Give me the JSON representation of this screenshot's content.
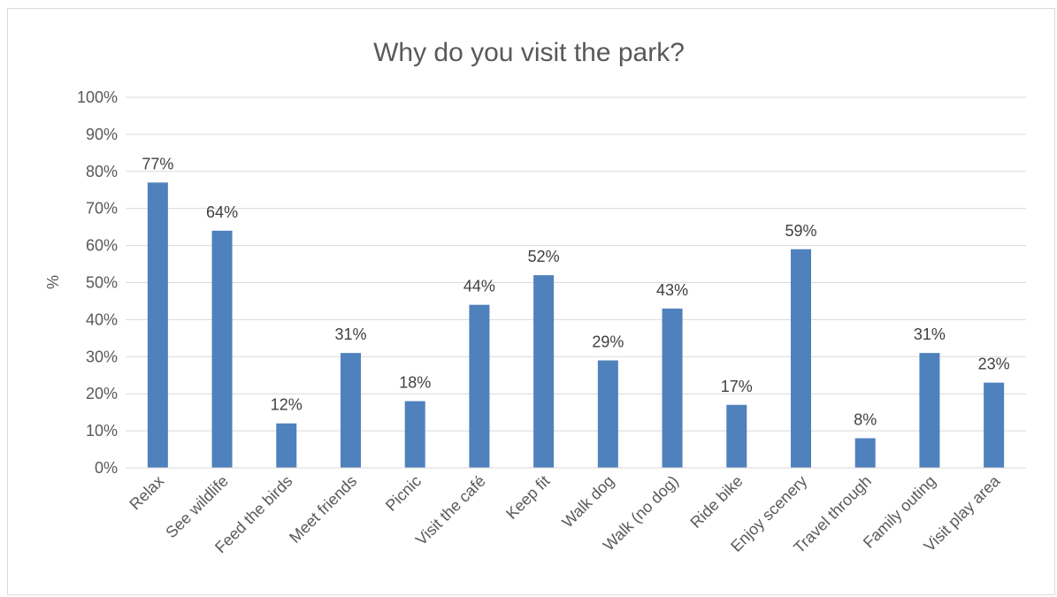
{
  "chart_data": {
    "type": "bar",
    "title": "Why do you visit the park?",
    "xlabel": "",
    "ylabel": "%",
    "ylim": [
      0,
      100
    ],
    "y_ticks": [
      "0%",
      "10%",
      "20%",
      "30%",
      "40%",
      "50%",
      "60%",
      "70%",
      "80%",
      "90%",
      "100%"
    ],
    "grid": true,
    "bar_color": "#4f81bd",
    "categories": [
      "Relax",
      "See wildlife",
      "Feed the birds",
      "Meet friends",
      "Picnic",
      "Visit the café",
      "Keep fit",
      "Walk dog",
      "Walk (no dog)",
      "Ride bike",
      "Enjoy scenery",
      "Travel through",
      "Family outing",
      "Visit play area"
    ],
    "values": [
      77,
      64,
      12,
      31,
      18,
      44,
      52,
      29,
      43,
      17,
      59,
      8,
      31,
      23
    ],
    "data_labels": [
      "77%",
      "64%",
      "12%",
      "31%",
      "18%",
      "44%",
      "52%",
      "29%",
      "43%",
      "17%",
      "59%",
      "8%",
      "31%",
      "23%"
    ]
  }
}
